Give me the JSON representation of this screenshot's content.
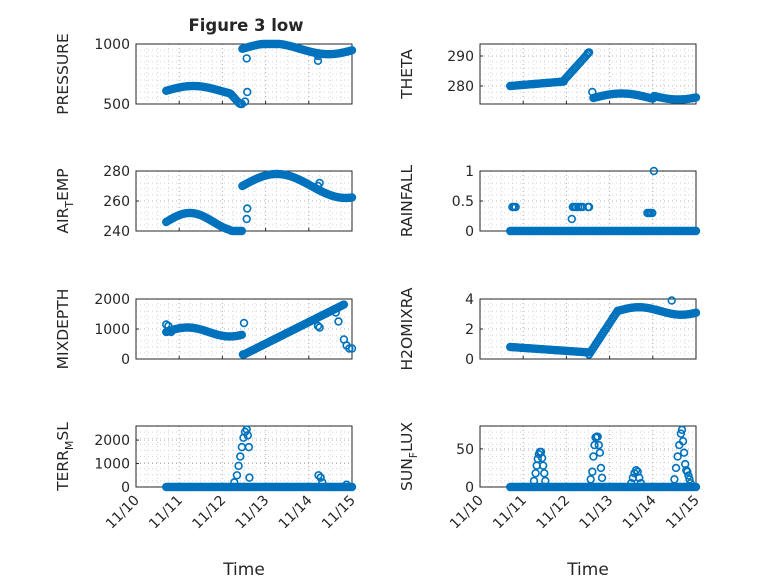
{
  "figure_title": "Figure 3 low",
  "colors": {
    "marker": "#0072BD",
    "axis": "#262626",
    "grid": "#b0b0b0"
  },
  "chart_data": [
    {
      "type": "scatter",
      "ylabel": "PRESSURE",
      "ylabel_sub": [],
      "ylim": [
        500,
        1000
      ],
      "yticks": [
        500,
        1000
      ],
      "yticklabels": [
        "500",
        "1000"
      ],
      "xlim": [
        0,
        4
      ],
      "xticklabels": [],
      "xlabel": "",
      "grid": true,
      "segments": [
        {
          "x0": 0.56,
          "x1": 1.96,
          "fn": "pressure_low"
        },
        {
          "x0": 1.97,
          "x1": 4.0,
          "fn": "pressure_high"
        }
      ],
      "extra_points": [
        [
          2.05,
          880
        ],
        [
          2.06,
          600
        ],
        [
          2.02,
          520
        ],
        [
          3.37,
          860
        ],
        [
          3.37,
          900
        ]
      ]
    },
    {
      "type": "scatter",
      "ylabel": "THETA",
      "ylabel_sub": [],
      "ylim": [
        274,
        294
      ],
      "yticks": [
        280,
        290
      ],
      "yticklabels": [
        "280",
        "290"
      ],
      "xlim": [
        0,
        4
      ],
      "xticklabels": [],
      "xlabel": "",
      "grid": true,
      "segments": [
        {
          "x0": 0.56,
          "x1": 1.55,
          "fn": "theta_a"
        },
        {
          "x0": 1.56,
          "x1": 2.02,
          "fn": "theta_b"
        },
        {
          "x0": 2.1,
          "x1": 4.0,
          "fn": "theta_c"
        }
      ],
      "extra_points": [
        [
          2.08,
          278
        ],
        [
          2.0,
          291
        ]
      ]
    },
    {
      "type": "scatter",
      "ylabel": "AIR_TEMP",
      "ylabel_sub": [
        "AIR",
        "T",
        "EMP"
      ],
      "ylim": [
        240,
        280
      ],
      "yticks": [
        240,
        260,
        280
      ],
      "yticklabels": [
        "240",
        "260",
        "280"
      ],
      "xlim": [
        0,
        4
      ],
      "xticklabels": [],
      "xlabel": "",
      "grid": true,
      "segments": [
        {
          "x0": 0.56,
          "x1": 1.96,
          "fn": "temp_low"
        },
        {
          "x0": 1.97,
          "x1": 4.0,
          "fn": "temp_high"
        }
      ],
      "extra_points": [
        [
          2.06,
          255
        ],
        [
          2.05,
          248
        ],
        [
          3.37,
          270
        ],
        [
          3.4,
          272
        ]
      ]
    },
    {
      "type": "scatter",
      "ylabel": "RAINFALL",
      "ylabel_sub": [],
      "ylim": [
        0,
        1
      ],
      "yticks": [
        0,
        0.5,
        1
      ],
      "yticklabels": [
        "0",
        "0.5",
        "1"
      ],
      "xlim": [
        0,
        4
      ],
      "xticklabels": [],
      "xlabel": "",
      "grid": true,
      "segments": [
        {
          "x0": 0.56,
          "x1": 4.0,
          "fn": "zero"
        }
      ],
      "extra_points": [
        [
          0.6,
          0.4
        ],
        [
          0.63,
          0.4
        ],
        [
          0.66,
          0.4
        ],
        [
          1.7,
          0.2
        ],
        [
          1.72,
          0.4
        ],
        [
          1.75,
          0.4
        ],
        [
          1.78,
          0.4
        ],
        [
          1.82,
          0.4
        ],
        [
          1.86,
          0.4
        ],
        [
          1.9,
          0.4
        ],
        [
          2.0,
          0.4
        ],
        [
          2.02,
          0.4
        ],
        [
          3.1,
          0.3
        ],
        [
          3.13,
          0.3
        ],
        [
          3.16,
          0.3
        ],
        [
          3.19,
          0.3
        ],
        [
          3.22,
          1.0
        ]
      ]
    },
    {
      "type": "scatter",
      "ylabel": "MIXDEPTH",
      "ylabel_sub": [],
      "ylim": [
        0,
        2000
      ],
      "yticks": [
        0,
        1000,
        2000
      ],
      "yticklabels": [
        "0",
        "1000",
        "2000"
      ],
      "xlim": [
        0,
        4
      ],
      "xticklabels": [],
      "xlabel": "",
      "grid": true,
      "segments": [
        {
          "x0": 0.56,
          "x1": 1.96,
          "fn": "mix_a"
        },
        {
          "x0": 2.0,
          "x1": 3.85,
          "fn": "mix_b"
        }
      ],
      "extra_points": [
        [
          0.56,
          1150
        ],
        [
          0.6,
          1100
        ],
        [
          0.65,
          900
        ],
        [
          2.0,
          1200
        ],
        [
          1.98,
          150
        ],
        [
          3.37,
          1100
        ],
        [
          3.4,
          1050
        ],
        [
          3.7,
          1550
        ],
        [
          3.75,
          1250
        ],
        [
          3.85,
          650
        ],
        [
          3.9,
          450
        ],
        [
          3.95,
          350
        ],
        [
          4.0,
          350
        ]
      ]
    },
    {
      "type": "scatter",
      "ylabel": "H2OMIXRA",
      "ylabel_sub": [],
      "ylim": [
        0,
        4
      ],
      "yticks": [
        0,
        2,
        4
      ],
      "yticklabels": [
        "0",
        "2",
        "4"
      ],
      "xlim": [
        0,
        4
      ],
      "xticklabels": [],
      "xlabel": "",
      "grid": true,
      "segments": [
        {
          "x0": 0.56,
          "x1": 2.02,
          "fn": "h2o_a"
        },
        {
          "x0": 2.02,
          "x1": 2.55,
          "fn": "h2o_b"
        },
        {
          "x0": 2.55,
          "x1": 4.0,
          "fn": "h2o_c"
        }
      ],
      "extra_points": [
        [
          3.55,
          3.9
        ]
      ]
    },
    {
      "type": "scatter",
      "ylabel": "TERR_MSL",
      "ylabel_sub": [
        "TERR",
        "M",
        "SL"
      ],
      "ylim": [
        0,
        2600
      ],
      "yticks": [
        0,
        1000,
        2000
      ],
      "yticklabels": [
        "0",
        "1000",
        "2000"
      ],
      "xlim": [
        0,
        4
      ],
      "xticklabels": [
        "11/10",
        "11/11",
        "11/12",
        "11/13",
        "11/14",
        "11/15"
      ],
      "xlabel": "Time",
      "grid": true,
      "segments": [
        {
          "x0": 0.56,
          "x1": 4.0,
          "fn": "zero"
        }
      ],
      "extra_points": [
        [
          1.82,
          200
        ],
        [
          1.87,
          500
        ],
        [
          1.9,
          900
        ],
        [
          1.93,
          1300
        ],
        [
          1.96,
          1700
        ],
        [
          1.99,
          2100
        ],
        [
          2.02,
          2350
        ],
        [
          2.05,
          2450
        ],
        [
          2.07,
          2200
        ],
        [
          2.09,
          1700
        ],
        [
          2.1,
          400
        ],
        [
          3.38,
          500
        ],
        [
          3.42,
          400
        ],
        [
          3.45,
          200
        ],
        [
          3.9,
          100
        ]
      ]
    },
    {
      "type": "scatter",
      "ylabel": "SUN_FLUX",
      "ylabel_sub": [
        "SUN",
        "F",
        "LUX"
      ],
      "ylim": [
        0,
        80
      ],
      "yticks": [
        0,
        50
      ],
      "yticklabels": [
        "0",
        "50"
      ],
      "xlim": [
        0,
        4
      ],
      "xticklabels": [
        "11/10",
        "11/11",
        "11/12",
        "11/13",
        "11/14",
        "11/15"
      ],
      "xlabel": "Time",
      "grid": true,
      "segments": [
        {
          "x0": 0.56,
          "x1": 4.0,
          "fn": "zero"
        }
      ],
      "extra_points": [
        [
          1.0,
          8
        ],
        [
          1.03,
          18
        ],
        [
          1.05,
          28
        ],
        [
          1.07,
          37
        ],
        [
          1.09,
          43
        ],
        [
          1.11,
          46
        ],
        [
          1.13,
          46
        ],
        [
          1.15,
          38
        ],
        [
          1.17,
          28
        ],
        [
          1.19,
          18
        ],
        [
          1.21,
          8
        ],
        [
          2.05,
          10
        ],
        [
          2.08,
          20
        ],
        [
          2.1,
          40
        ],
        [
          2.12,
          55
        ],
        [
          2.14,
          65
        ],
        [
          2.16,
          66
        ],
        [
          2.18,
          66
        ],
        [
          2.2,
          55
        ],
        [
          2.22,
          45
        ],
        [
          2.24,
          25
        ],
        [
          2.26,
          12
        ],
        [
          2.8,
          5
        ],
        [
          2.83,
          12
        ],
        [
          2.86,
          18
        ],
        [
          2.89,
          22
        ],
        [
          2.92,
          20
        ],
        [
          2.95,
          12
        ],
        [
          2.98,
          5
        ],
        [
          3.6,
          10
        ],
        [
          3.63,
          25
        ],
        [
          3.66,
          40
        ],
        [
          3.69,
          55
        ],
        [
          3.72,
          70
        ],
        [
          3.74,
          75
        ],
        [
          3.76,
          60
        ],
        [
          3.78,
          45
        ],
        [
          3.8,
          30
        ],
        [
          3.82,
          22
        ],
        [
          3.84,
          20
        ],
        [
          3.86,
          15
        ],
        [
          3.88,
          10
        ],
        [
          3.9,
          5
        ]
      ]
    }
  ]
}
